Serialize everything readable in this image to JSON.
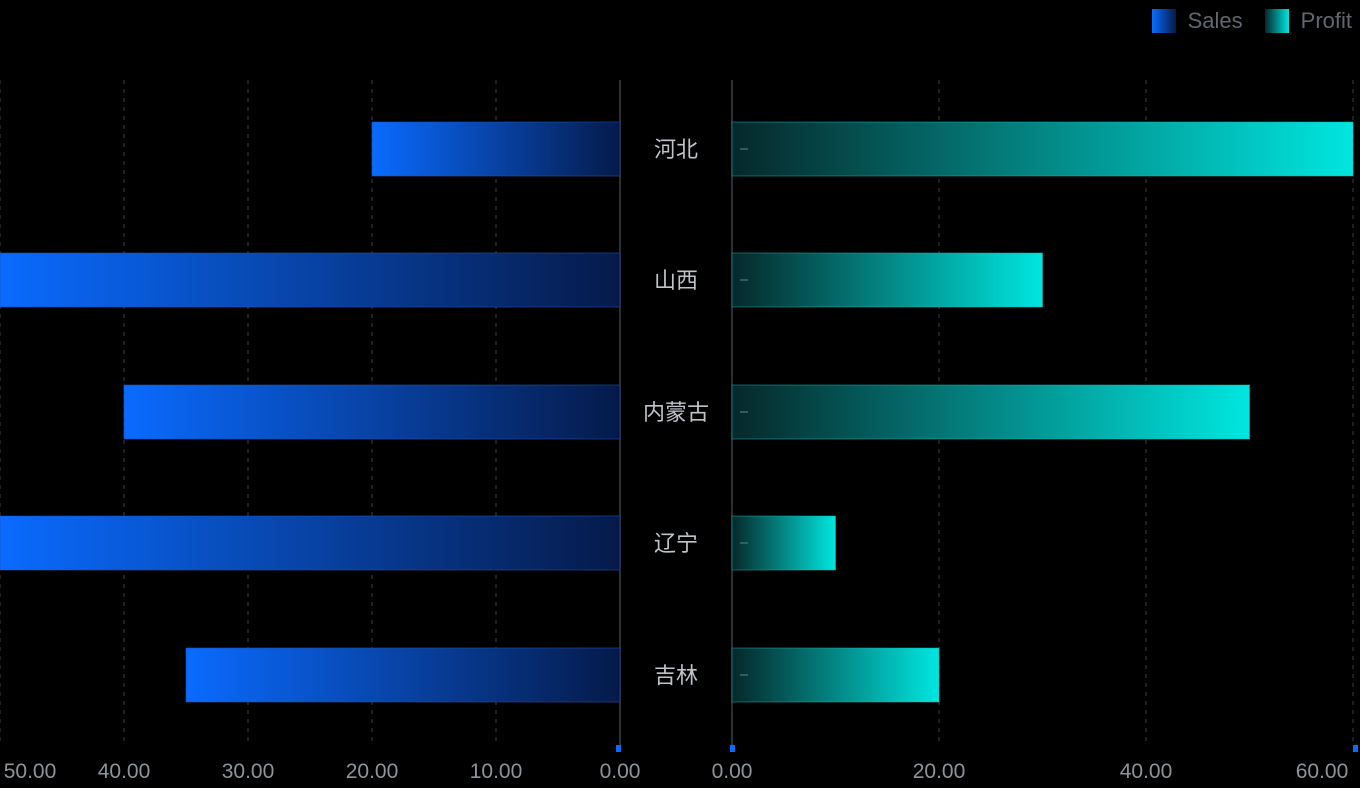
{
  "chart_data": {
    "type": "bar",
    "orientation": "horizontal-butterfly",
    "categories": [
      "河北",
      "山西",
      "内蒙古",
      "辽宁",
      "吉林"
    ],
    "series": [
      {
        "name": "Sales",
        "side": "left",
        "values": [
          20,
          50,
          40,
          50,
          35
        ],
        "color_start": "#0a6bff",
        "color_end": "#051a4a"
      },
      {
        "name": "Profit",
        "side": "right",
        "values": [
          60,
          30,
          50,
          10,
          20
        ],
        "color_start": "#06282a",
        "color_end": "#00e6e0"
      }
    ],
    "left_axis": {
      "ticks": [
        50,
        40,
        30,
        20,
        10,
        0
      ],
      "tick_labels": [
        "50.00",
        "40.00",
        "30.00",
        "20.00",
        "10.00",
        "0.00"
      ],
      "range": [
        0,
        50
      ]
    },
    "right_axis": {
      "ticks": [
        0,
        20,
        40,
        60
      ],
      "tick_labels": [
        "0.00",
        "20.00",
        "40.00",
        "60.00"
      ],
      "range": [
        0,
        60
      ]
    },
    "legend": {
      "position": "top-right",
      "items": [
        "Sales",
        "Profit"
      ]
    },
    "grid": true,
    "axis_color": "#3a3f44",
    "grid_color": "#3a3f44",
    "accent_color": "#0a6bff"
  }
}
